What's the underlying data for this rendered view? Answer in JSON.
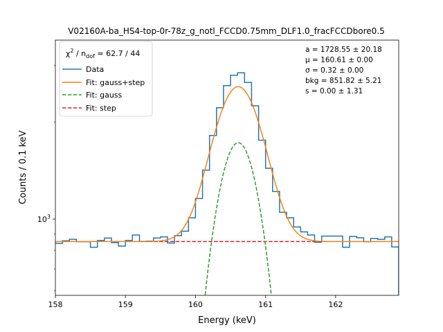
{
  "chart_data": {
    "type": "line",
    "title": "V02160A-ba_HS4-top-0r-78z_g_notl_FCCD0.75mm_DLF1.0_fracFCCDbore0.5",
    "xlabel": "Energy (keV)",
    "ylabel": "Counts / 0.1 keV",
    "xlim": [
      158.0,
      162.9
    ],
    "ylim": [
      580,
      3600
    ],
    "yscale": "log",
    "x_ticks": [
      158,
      159,
      160,
      161,
      162
    ],
    "x_tick_labels": [
      "158",
      "159",
      "160",
      "161",
      "162"
    ],
    "y_ticks": [
      1000
    ],
    "y_tick_labels": [
      "10³"
    ],
    "grid": false,
    "legend": {
      "placement": "top-left",
      "header": "χ² / n_dof = 62.7 / 44",
      "header_parts": [
        "χ",
        "2",
        " / n",
        "dof",
        " = 62.7 / 44"
      ]
    },
    "annotations": [
      "a = 1728.55 ± 20.18",
      "μ = 160.61 ± 0.00",
      "σ = 0.32 ± 0.00",
      "bkg = 851.82 ± 5.21",
      "s = 0.00 ± 1.31"
    ],
    "series": [
      {
        "name": "Data",
        "style": "step",
        "color": "#1f77b4",
        "bin_edges": [
          158.0,
          158.1,
          158.2,
          158.3,
          158.4,
          158.5,
          158.6,
          158.7,
          158.8,
          158.9,
          159.0,
          159.1,
          159.2,
          159.3,
          159.4,
          159.5,
          159.6,
          159.7,
          159.8,
          159.9,
          160.0,
          160.1,
          160.2,
          160.3,
          160.4,
          160.5,
          160.6,
          160.7,
          160.8,
          160.9,
          161.0,
          161.1,
          161.2,
          161.3,
          161.4,
          161.5,
          161.6,
          161.7,
          161.8,
          161.9,
          162.0,
          162.1,
          162.2,
          162.3,
          162.4,
          162.5,
          162.6,
          162.7,
          162.8,
          162.9
        ],
        "counts": [
          841,
          857,
          866,
          851,
          851,
          818,
          859,
          874,
          846,
          825,
          859,
          893,
          853,
          855,
          874,
          881,
          843,
          889,
          918,
          1010,
          1160,
          1420,
          1820,
          2220,
          2600,
          2800,
          2850,
          2660,
          2250,
          1760,
          1440,
          1220,
          1050,
          1010,
          946,
          913,
          893,
          848,
          886,
          886,
          886,
          818,
          884,
          876,
          851,
          871,
          866,
          881,
          820
        ]
      },
      {
        "name": "Fit: gauss+step",
        "style": "solid",
        "color": "#ff7f0e",
        "model": "bkg + a*gauss(mu, sigma) + step"
      },
      {
        "name": "Fit: gauss",
        "style": "dashed",
        "color": "#2ca02c",
        "model": "a*gauss(mu, sigma)"
      },
      {
        "name": "Fit: step",
        "style": "dashed",
        "color": "#d62728",
        "model": "bkg"
      }
    ],
    "fit_params": {
      "a": 1728.55,
      "mu": 160.61,
      "sigma": 0.32,
      "bkg": 851.82,
      "s": 0.0
    }
  }
}
